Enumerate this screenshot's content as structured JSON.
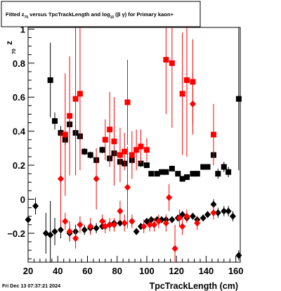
{
  "chart_data": {
    "type": "scatter",
    "title_parts": {
      "pre": "Fitted  z",
      "sub1": "70",
      "mid": "  versus TpcTrackLength and log",
      "sub2": "10",
      "post": "(β  γ) for Primary kaon+"
    },
    "xlabel": "TpcTrackLength (cm)",
    "ylabel_main": "z",
    "ylabel_sub": "70",
    "xlim": [
      20,
      163
    ],
    "ylim": [
      -0.37,
      1.01
    ],
    "xticks": [
      20,
      40,
      60,
      80,
      100,
      120,
      140,
      160
    ],
    "xtick_labels": [
      "20",
      "40",
      "60",
      "80",
      "100",
      "120",
      "140",
      "160"
    ],
    "yticks": [
      -0.2,
      0,
      0.2,
      0.4,
      0.6,
      0.8,
      1
    ],
    "ytick_labels": [
      "−0.2",
      "0",
      "0.2",
      "0.4",
      "0.6",
      "0.8",
      "1"
    ],
    "footer_timestamp": "Fri Dec 13 07:37:21 2024",
    "series": [
      {
        "marker": "square",
        "color": "#000000",
        "points": [
          {
            "x": 35,
            "y": 0.7,
            "err": 0.22
          },
          {
            "x": 38,
            "y": 0.46,
            "err": 0.05
          },
          {
            "x": 42,
            "y": 0.39,
            "err": 0.04
          },
          {
            "x": 45,
            "y": 0.35,
            "err": 0.03
          },
          {
            "x": 48,
            "y": 0.44,
            "err": 0.04
          },
          {
            "x": 52,
            "y": 0.39,
            "err": 0.04
          },
          {
            "x": 55,
            "y": 0.37,
            "err": 0.03
          },
          {
            "x": 58,
            "y": 0.28,
            "err": 0.02
          },
          {
            "x": 62,
            "y": 0.26,
            "err": 0.02
          },
          {
            "x": 66,
            "y": 0.23,
            "err": 0.02
          },
          {
            "x": 70,
            "y": 0.29,
            "err": 0.02
          },
          {
            "x": 75,
            "y": 0.24,
            "err": 0.02
          },
          {
            "x": 78,
            "y": 0.27,
            "err": 0.02
          },
          {
            "x": 82,
            "y": 0.22,
            "err": 0.02
          },
          {
            "x": 85,
            "y": 0.21,
            "err": 0.02
          },
          {
            "x": 90,
            "y": 0.23,
            "err": 0.02
          },
          {
            "x": 96,
            "y": 0.21,
            "err": 0.02
          },
          {
            "x": 100,
            "y": 0.2,
            "err": 0.01
          },
          {
            "x": 103,
            "y": 0.15,
            "err": 0.01
          },
          {
            "x": 107,
            "y": 0.15,
            "err": 0.01
          },
          {
            "x": 110,
            "y": 0.16,
            "err": 0.01
          },
          {
            "x": 113,
            "y": 0.16,
            "err": 0.01
          },
          {
            "x": 117,
            "y": 0.18,
            "err": 0.01
          },
          {
            "x": 121,
            "y": 0.15,
            "err": 0.01
          },
          {
            "x": 124,
            "y": 0.12,
            "err": 0.01
          },
          {
            "x": 127,
            "y": 0.13,
            "err": 0.01
          },
          {
            "x": 131,
            "y": 0.15,
            "err": 0.01
          },
          {
            "x": 134,
            "y": 0.15,
            "err": 0.01
          },
          {
            "x": 138,
            "y": 0.19,
            "err": 0.01
          },
          {
            "x": 141,
            "y": 0.19,
            "err": 0.01
          },
          {
            "x": 145,
            "y": 0.26,
            "err": 0.04
          },
          {
            "x": 148,
            "y": 0.15,
            "err": 0.03
          },
          {
            "x": 152,
            "y": 0.19,
            "err": 0.03
          },
          {
            "x": 155,
            "y": 0.16,
            "err": 0.03
          },
          {
            "x": 162,
            "y": 0.59,
            "err": 0.42
          }
        ]
      },
      {
        "marker": "square",
        "color": "#ff0000",
        "points": [
          {
            "x": 45,
            "y": 0.38,
            "err": 0.36
          },
          {
            "x": 48,
            "y": 0.49,
            "err": 0.35
          },
          {
            "x": 52,
            "y": 0.59,
            "err": 0.45
          },
          {
            "x": 55,
            "y": 0.62,
            "err": 0.45
          },
          {
            "x": 72,
            "y": 0.35,
            "err": 0.12
          },
          {
            "x": 75,
            "y": 0.41,
            "err": 0.22
          },
          {
            "x": 78,
            "y": 0.34,
            "err": 0.26
          },
          {
            "x": 82,
            "y": 0.26,
            "err": 0.16
          },
          {
            "x": 85,
            "y": 0.28,
            "err": 0.11
          },
          {
            "x": 87,
            "y": 0.57,
            "err": 0.25
          },
          {
            "x": 90,
            "y": 0.26,
            "err": 0.14
          },
          {
            "x": 93,
            "y": 0.29,
            "err": 0.12
          },
          {
            "x": 96,
            "y": 0.31,
            "err": 0.1
          },
          {
            "x": 100,
            "y": 0.29,
            "err": 0.07
          },
          {
            "x": 113,
            "y": 0.82,
            "err": 0.32
          },
          {
            "x": 117,
            "y": 0.8,
            "err": 0.38
          },
          {
            "x": 124,
            "y": 0.62,
            "err": 0.36
          },
          {
            "x": 127,
            "y": 0.7,
            "err": 0.45
          },
          {
            "x": 131,
            "y": 0.69,
            "err": 0.25
          },
          {
            "x": 145,
            "y": 0.38,
            "err": 0.18
          }
        ]
      },
      {
        "marker": "diamond",
        "color": "#000000",
        "points": [
          {
            "x": 20,
            "y": -0.12,
            "err": 0.05
          },
          {
            "x": 25,
            "y": -0.04,
            "err": 0.05
          },
          {
            "x": 32,
            "y": -0.2,
            "err": 0.12
          },
          {
            "x": 35,
            "y": -0.21,
            "err": 0.2
          },
          {
            "x": 38,
            "y": -0.19,
            "err": 0.08
          },
          {
            "x": 42,
            "y": -0.18,
            "err": 0.05
          },
          {
            "x": 48,
            "y": -0.2,
            "err": 0.04
          },
          {
            "x": 52,
            "y": -0.19,
            "err": 0.04
          },
          {
            "x": 58,
            "y": -0.18,
            "err": 0.03
          },
          {
            "x": 62,
            "y": -0.17,
            "err": 0.03
          },
          {
            "x": 66,
            "y": -0.17,
            "err": 0.03
          },
          {
            "x": 70,
            "y": -0.16,
            "err": 0.02
          },
          {
            "x": 75,
            "y": -0.15,
            "err": 0.02
          },
          {
            "x": 78,
            "y": -0.14,
            "err": 0.02
          },
          {
            "x": 82,
            "y": -0.14,
            "err": 0.02
          },
          {
            "x": 85,
            "y": -0.14,
            "err": 0.02
          },
          {
            "x": 90,
            "y": -0.13,
            "err": 0.02
          },
          {
            "x": 93,
            "y": -0.19,
            "err": 0.02
          },
          {
            "x": 96,
            "y": -0.16,
            "err": 0.02
          },
          {
            "x": 100,
            "y": -0.13,
            "err": 0.02
          },
          {
            "x": 103,
            "y": -0.12,
            "err": 0.02
          },
          {
            "x": 107,
            "y": -0.12,
            "err": 0.02
          },
          {
            "x": 110,
            "y": -0.12,
            "err": 0.02
          },
          {
            "x": 113,
            "y": -0.12,
            "err": 0.02
          },
          {
            "x": 117,
            "y": -0.12,
            "err": 0.02
          },
          {
            "x": 121,
            "y": -0.11,
            "err": 0.02
          },
          {
            "x": 124,
            "y": -0.09,
            "err": 0.02
          },
          {
            "x": 127,
            "y": -0.11,
            "err": 0.02
          },
          {
            "x": 131,
            "y": -0.1,
            "err": 0.02
          },
          {
            "x": 134,
            "y": -0.12,
            "err": 0.02
          },
          {
            "x": 138,
            "y": -0.11,
            "err": 0.02
          },
          {
            "x": 141,
            "y": -0.09,
            "err": 0.02
          },
          {
            "x": 145,
            "y": -0.03,
            "err": 0.03
          },
          {
            "x": 148,
            "y": -0.08,
            "err": 0.03
          },
          {
            "x": 152,
            "y": -0.07,
            "err": 0.03
          },
          {
            "x": 155,
            "y": -0.07,
            "err": 0.03
          },
          {
            "x": 158,
            "y": -0.1,
            "err": 0.03
          },
          {
            "x": 162,
            "y": -0.33,
            "err": 0.03
          }
        ]
      },
      {
        "marker": "diamond",
        "color": "#ff0000",
        "points": [
          {
            "x": 42,
            "y": 0.12,
            "err": 0.28
          },
          {
            "x": 45,
            "y": -0.13,
            "err": 0.05
          },
          {
            "x": 48,
            "y": -0.19,
            "err": 0.06
          },
          {
            "x": 52,
            "y": -0.23,
            "err": 0.06
          },
          {
            "x": 55,
            "y": -0.15,
            "err": 0.05
          },
          {
            "x": 62,
            "y": -0.16,
            "err": 0.05
          },
          {
            "x": 66,
            "y": 0.12,
            "err": 0.18
          },
          {
            "x": 70,
            "y": -0.13,
            "err": 0.04
          },
          {
            "x": 72,
            "y": -0.16,
            "err": 0.04
          },
          {
            "x": 75,
            "y": -0.15,
            "err": 0.04
          },
          {
            "x": 78,
            "y": -0.15,
            "err": 0.04
          },
          {
            "x": 82,
            "y": -0.07,
            "err": 0.06
          },
          {
            "x": 85,
            "y": -0.14,
            "err": 0.05
          },
          {
            "x": 87,
            "y": 0.07,
            "err": 0.24
          },
          {
            "x": 90,
            "y": -0.13,
            "err": 0.04
          },
          {
            "x": 98,
            "y": -0.16,
            "err": 0.04
          },
          {
            "x": 102,
            "y": -0.15,
            "err": 0.04
          },
          {
            "x": 105,
            "y": -0.15,
            "err": 0.04
          },
          {
            "x": 108,
            "y": -0.13,
            "err": 0.04
          },
          {
            "x": 113,
            "y": -0.14,
            "err": 0.05
          },
          {
            "x": 115,
            "y": 0.01,
            "err": 0.08
          },
          {
            "x": 119,
            "y": -0.29,
            "err": 0.14
          },
          {
            "x": 122,
            "y": -0.11,
            "err": 0.05
          },
          {
            "x": 124,
            "y": -0.16,
            "err": 0.05
          },
          {
            "x": 127,
            "y": -0.1,
            "err": 0.04
          },
          {
            "x": 131,
            "y": 0.56,
            "err": 0.18
          },
          {
            "x": 134,
            "y": -0.14,
            "err": 0.04
          },
          {
            "x": 145,
            "y": -0.08,
            "err": 0.04
          }
        ]
      }
    ]
  }
}
